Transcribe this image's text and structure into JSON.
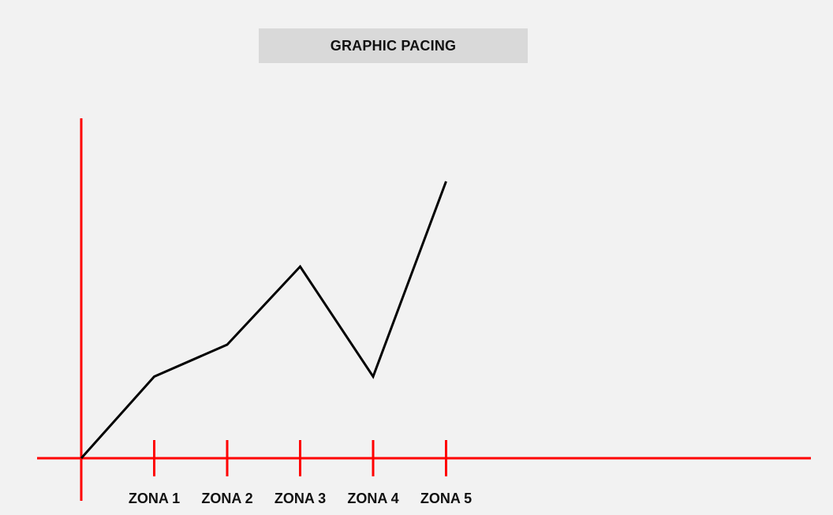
{
  "title": "GRAPHIC PACING",
  "colors": {
    "background": "#f2f2f2",
    "title_box": "#d9d9d9",
    "axes": "#ff0000",
    "line": "#000000",
    "text": "#111111"
  },
  "chart_data": {
    "type": "line",
    "title": "GRAPHIC PACING",
    "xlabel": "",
    "ylabel": "",
    "categories": [
      "ZONA 1",
      "ZONA 2",
      "ZONA 3",
      "ZONA 4",
      "ZONA 5"
    ],
    "x": [
      0,
      1,
      2,
      3,
      4,
      5
    ],
    "y": [
      0,
      23,
      32,
      54,
      23,
      78
    ],
    "xlim": [
      -0.02,
      9.7
    ],
    "ylim": [
      -10,
      100
    ],
    "grid": false,
    "legend": "none"
  }
}
